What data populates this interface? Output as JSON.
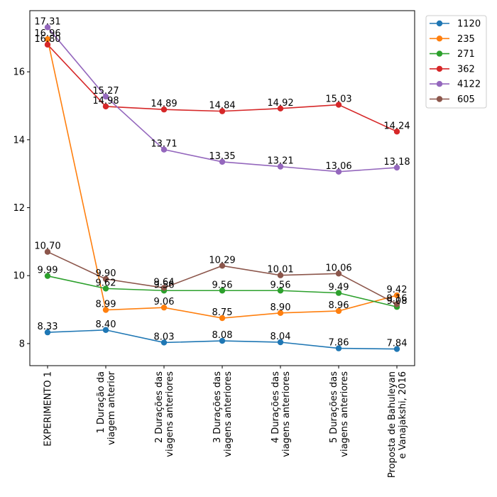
{
  "chart_data": {
    "type": "line",
    "categories": [
      [
        "EXPERIMENTO 1"
      ],
      [
        "1 Duração da",
        "viagem anterior"
      ],
      [
        "2 Durações das",
        "viagens anteriores"
      ],
      [
        "3 Durações das",
        "viagens anteriores"
      ],
      [
        "4 Durações das",
        "viagens anteriores"
      ],
      [
        "5 Durações das",
        "viagens anteriores"
      ],
      [
        "Proposta de Bahuleyan",
        "e Vanajakshi, 2016"
      ]
    ],
    "ylim": [
      7.35,
      17.8
    ],
    "yticks": [
      8,
      10,
      12,
      14,
      16
    ],
    "grid": false,
    "legend_position": "top-right outside",
    "series": [
      {
        "name": "1120",
        "color": "#1f77b4",
        "values": [
          8.33,
          8.4,
          8.03,
          8.08,
          8.04,
          7.86,
          7.84
        ]
      },
      {
        "name": "235",
        "color": "#ff7f0e",
        "values": [
          16.96,
          8.99,
          9.06,
          8.75,
          8.9,
          8.96,
          9.42
        ]
      },
      {
        "name": "271",
        "color": "#2ca02c",
        "values": [
          9.99,
          9.62,
          9.56,
          9.56,
          9.56,
          9.49,
          9.08
        ]
      },
      {
        "name": "362",
        "color": "#d62728",
        "values": [
          16.8,
          14.98,
          14.89,
          14.84,
          14.92,
          15.03,
          14.24
        ]
      },
      {
        "name": "4122",
        "color": "#9467bd",
        "values": [
          17.31,
          15.27,
          13.71,
          13.35,
          13.21,
          13.06,
          13.18
        ]
      },
      {
        "name": "605",
        "color": "#8c564b",
        "values": [
          10.7,
          9.9,
          9.64,
          10.29,
          10.01,
          10.06,
          9.16
        ]
      }
    ],
    "data_labels": [
      [
        "8.33",
        "8.40",
        "8.03",
        "8.08",
        "8.04",
        "7.86",
        "7.84"
      ],
      [
        "16.96",
        "8.99",
        "9.06",
        "8.75",
        "8.90",
        "8.96",
        "9.42"
      ],
      [
        "9.99",
        "9.62",
        "9.56",
        "9.56",
        "9.56",
        "9.49",
        "9.08"
      ],
      [
        "16.80",
        "14.98",
        "14.89",
        "14.84",
        "14.92",
        "15.03",
        "14.24"
      ],
      [
        "17.31",
        "15.27",
        "13.71",
        "13.35",
        "13.21",
        "13.06",
        "13.18"
      ],
      [
        "10.70",
        "9.90",
        "9.64",
        "10.29",
        "10.01",
        "10.06",
        "9.16"
      ]
    ],
    "ytick_labels": [
      "8",
      "10",
      "12",
      "14",
      "16"
    ]
  }
}
